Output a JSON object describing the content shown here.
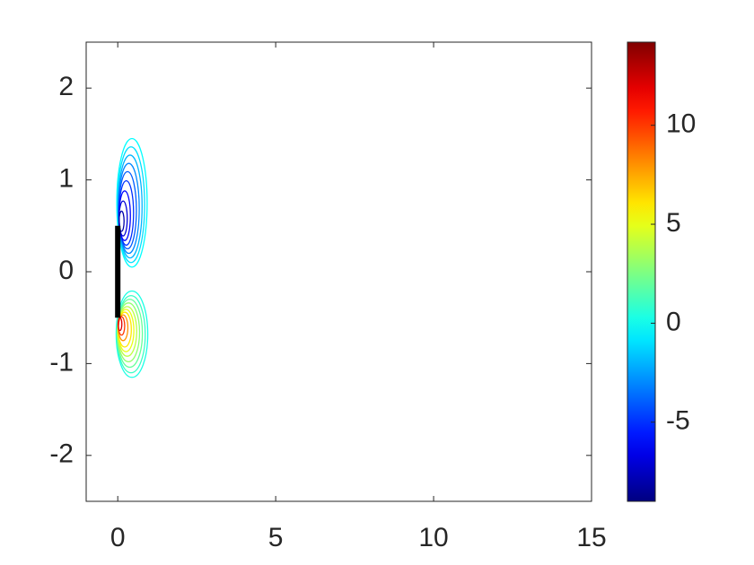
{
  "chart_data": {
    "type": "contour",
    "xlim": [
      -1,
      15
    ],
    "ylim": [
      -2.5,
      2.5
    ],
    "xticks": [
      0,
      5,
      10,
      15
    ],
    "yticks": [
      -2,
      -1,
      0,
      1,
      2
    ],
    "colormap": "jet",
    "clim": [
      -9,
      14.2
    ],
    "cticks": [
      -5,
      0,
      5,
      10
    ],
    "plate": {
      "x": [
        0,
        0
      ],
      "y": [
        -0.5,
        0.5
      ],
      "color": "#000000"
    },
    "contours": [
      {
        "level": -0.3,
        "center": [
          0.45,
          0.75
        ],
        "radii": [
          0.48,
          0.7
        ]
      },
      {
        "level": -1,
        "center": [
          0.42,
          0.73
        ],
        "radii": [
          0.43,
          0.63
        ]
      },
      {
        "level": -2,
        "center": [
          0.39,
          0.71
        ],
        "radii": [
          0.38,
          0.56
        ]
      },
      {
        "level": -3,
        "center": [
          0.35,
          0.69
        ],
        "radii": [
          0.33,
          0.49
        ]
      },
      {
        "level": -4,
        "center": [
          0.31,
          0.67
        ],
        "radii": [
          0.28,
          0.42
        ]
      },
      {
        "level": -5,
        "center": [
          0.27,
          0.64
        ],
        "radii": [
          0.23,
          0.35
        ]
      },
      {
        "level": -6,
        "center": [
          0.22,
          0.61
        ],
        "radii": [
          0.18,
          0.27
        ]
      },
      {
        "level": -7,
        "center": [
          0.17,
          0.58
        ],
        "radii": [
          0.13,
          0.19
        ]
      },
      {
        "level": -8,
        "center": [
          0.12,
          0.55
        ],
        "radii": [
          0.08,
          0.11
        ]
      },
      {
        "level": 0.3,
        "center": [
          0.45,
          -0.68
        ],
        "radii": [
          0.5,
          0.47
        ]
      },
      {
        "level": 1,
        "center": [
          0.42,
          -0.68
        ],
        "radii": [
          0.45,
          0.42
        ]
      },
      {
        "level": 2,
        "center": [
          0.38,
          -0.67
        ],
        "radii": [
          0.4,
          0.37
        ]
      },
      {
        "level": 3,
        "center": [
          0.34,
          -0.66
        ],
        "radii": [
          0.35,
          0.32
        ]
      },
      {
        "level": 4,
        "center": [
          0.3,
          -0.65
        ],
        "radii": [
          0.3,
          0.27
        ]
      },
      {
        "level": 5,
        "center": [
          0.26,
          -0.64
        ],
        "radii": [
          0.25,
          0.23
        ]
      },
      {
        "level": 6,
        "center": [
          0.22,
          -0.63
        ],
        "radii": [
          0.21,
          0.19
        ]
      },
      {
        "level": 8,
        "center": [
          0.17,
          -0.61
        ],
        "radii": [
          0.15,
          0.14
        ]
      },
      {
        "level": 10,
        "center": [
          0.12,
          -0.59
        ],
        "radii": [
          0.1,
          0.1
        ]
      },
      {
        "level": 12,
        "center": [
          0.07,
          -0.57
        ],
        "radii": [
          0.06,
          0.07
        ]
      }
    ]
  }
}
